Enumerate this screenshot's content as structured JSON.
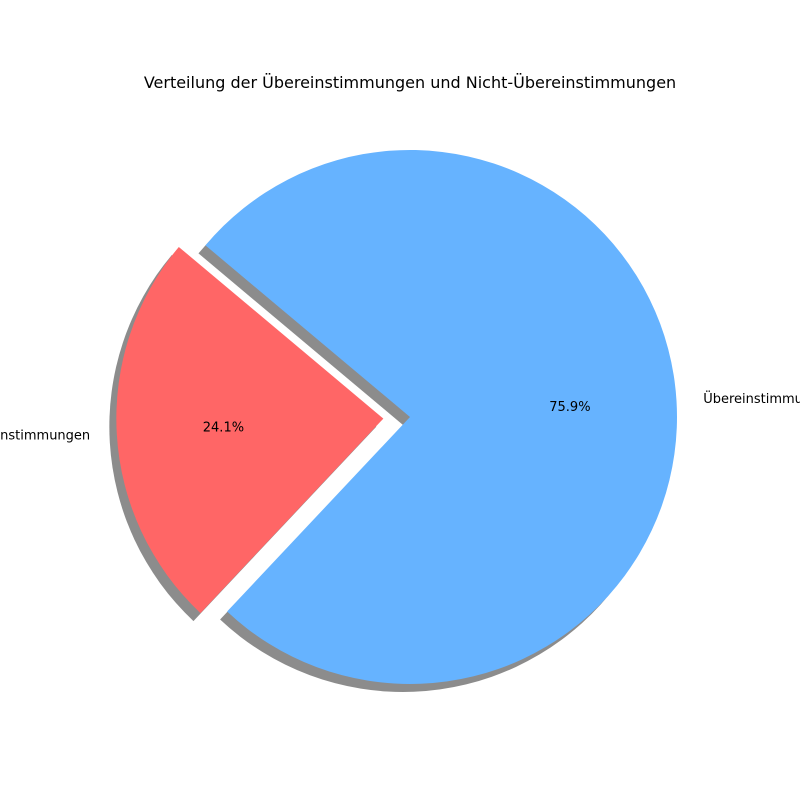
{
  "chart_data": {
    "type": "pie",
    "title": "Verteilung der Übereinstimmungen und Nicht-Übereinstimmungen",
    "slices": [
      {
        "label": "Nicht-Übereinstimmungen",
        "value": 24.1,
        "percent_label": "24.1%",
        "color": "#ff6666",
        "exploded": true
      },
      {
        "label": "Übereinstimmungen",
        "value": 75.9,
        "percent_label": "75.9%",
        "color": "#66b3ff",
        "exploded": false
      }
    ],
    "start_angle_deg": 140,
    "shadow": true,
    "legend": "none"
  }
}
